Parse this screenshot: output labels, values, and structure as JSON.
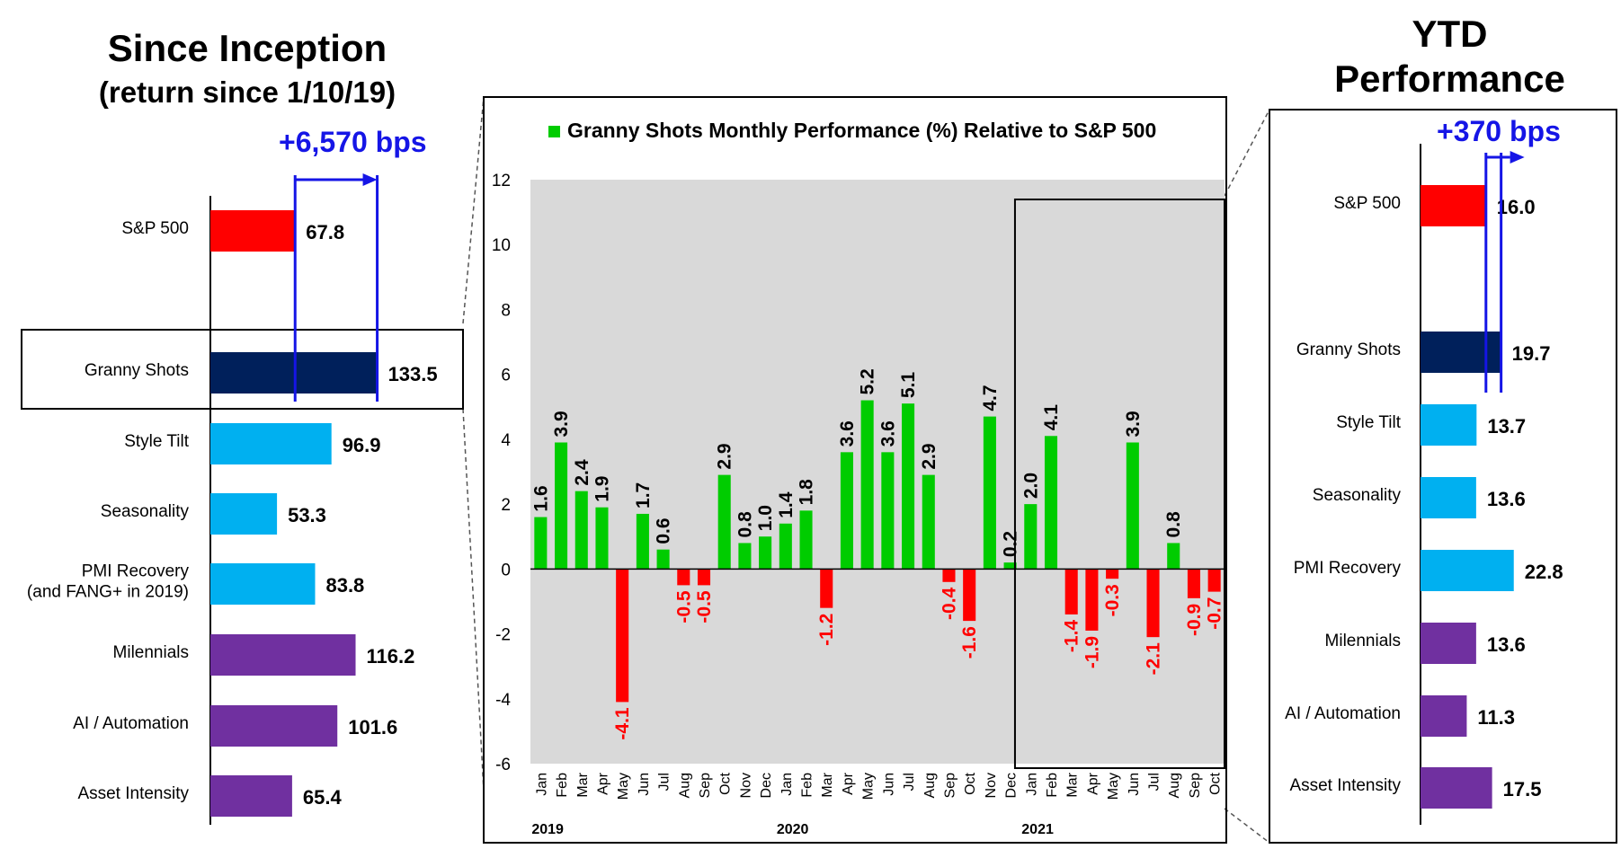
{
  "left_panel": {
    "title": "Since Inception",
    "subtitle": "(return since 1/10/19)",
    "bps_label": "+6,570 bps"
  },
  "right_panel": {
    "title_line1": "YTD",
    "title_line2": "Performance",
    "bps_label": "+370 bps"
  },
  "colors": {
    "sp500": "#ff0000",
    "granny": "#00205b",
    "light_blue": "#00b0f0",
    "purple": "#7030a0",
    "green": "#00cc00",
    "neg_red": "#ff0000",
    "bps_blue": "#1515e6",
    "plot_bg": "#d9d9d9"
  },
  "chart_data": [
    {
      "type": "bar",
      "orientation": "horizontal",
      "title": "Since Inception",
      "categories": [
        "S&P 500",
        "Granny Shots",
        "Style Tilt",
        "Seasonality",
        "PMI Recovery\n(and FANG+ in 2019)",
        "Milennials",
        "AI / Automation",
        "Asset Intensity"
      ],
      "values": [
        67.8,
        133.5,
        96.9,
        53.3,
        83.8,
        116.2,
        101.6,
        65.4
      ],
      "labels": [
        "67.8",
        "133.5",
        "96.9",
        "53.3",
        "83.8",
        "116.2",
        "101.6",
        "65.4"
      ],
      "bar_colors": [
        "sp500",
        "granny",
        "light_blue",
        "light_blue",
        "light_blue",
        "purple",
        "purple",
        "purple"
      ],
      "annotation": "+6,570 bps",
      "highlight": "Granny Shots"
    },
    {
      "type": "bar",
      "title": "Granny Shots Monthly Performance (%) Relative to S&P 500",
      "legend": "Granny Shots Monthly Performance (%) Relative to S&P 500",
      "categories": [
        "Jan",
        "Feb",
        "Mar",
        "Apr",
        "May",
        "Jun",
        "Jul",
        "Aug",
        "Sep",
        "Oct",
        "Nov",
        "Dec",
        "Jan",
        "Feb",
        "Mar",
        "Apr",
        "May",
        "Jun",
        "Jul",
        "Aug",
        "Sep",
        "Oct",
        "Nov",
        "Dec",
        "Jan",
        "Feb",
        "Mar",
        "Apr",
        "May",
        "Jun",
        "Jul",
        "Aug",
        "Sep",
        "Oct"
      ],
      "values": [
        1.6,
        3.9,
        2.4,
        1.9,
        -4.1,
        1.7,
        0.6,
        -0.5,
        -0.5,
        2.9,
        0.8,
        1.0,
        1.4,
        1.8,
        -1.2,
        3.6,
        5.2,
        3.6,
        5.1,
        2.9,
        -0.4,
        -1.6,
        4.7,
        0.2,
        2.0,
        4.1,
        -1.4,
        -1.9,
        -0.3,
        3.9,
        -2.1,
        0.8,
        -0.9,
        -0.7
      ],
      "labels": [
        "1.6",
        "3.9",
        "2.4",
        "1.9",
        "-4.1",
        "1.7",
        "0.6",
        "-0.5",
        "-0.5",
        "2.9",
        "0.8",
        "1.0",
        "1.4",
        "1.8",
        "-1.2",
        "3.6",
        "5.2",
        "3.6",
        "5.1",
        "2.9",
        "-0.4",
        "-1.6",
        "4.7",
        "0.2",
        "2.0",
        "4.1",
        "-1.4",
        "-1.9",
        "-0.3",
        "3.9",
        "-2.1",
        "0.8",
        "-0.9",
        "-0.7"
      ],
      "show_label": [
        true,
        true,
        true,
        true,
        true,
        true,
        true,
        true,
        true,
        true,
        true,
        true,
        true,
        true,
        true,
        true,
        true,
        true,
        true,
        true,
        true,
        true,
        true,
        true,
        true,
        true,
        true,
        true,
        true,
        true,
        true,
        true,
        true,
        true
      ],
      "year_labels": [
        {
          "label": "2019",
          "index": 0
        },
        {
          "label": "2020",
          "index": 12
        },
        {
          "label": "2021",
          "index": 24
        }
      ],
      "ylim": [
        -6,
        12
      ],
      "yticks": [
        "-6",
        "-4",
        "-2",
        "0",
        "2",
        "4",
        "6",
        "8",
        "10",
        "12"
      ],
      "ytick_values": [
        -6,
        -4,
        -2,
        0,
        2,
        4,
        6,
        8,
        10,
        12
      ],
      "grid": false,
      "highlight_range": [
        24,
        33
      ]
    },
    {
      "type": "bar",
      "orientation": "horizontal",
      "title": "YTD Performance",
      "categories": [
        "S&P 500",
        "Granny Shots",
        "Style Tilt",
        "Seasonality",
        "PMI Recovery",
        "Milennials",
        "AI / Automation",
        "Asset Intensity"
      ],
      "values": [
        16.0,
        19.7,
        13.7,
        13.6,
        22.8,
        13.6,
        11.3,
        17.5
      ],
      "labels": [
        "16.0",
        "19.7",
        "13.7",
        "13.6",
        "22.8",
        "13.6",
        "11.3",
        "17.5"
      ],
      "bar_colors": [
        "sp500",
        "granny",
        "light_blue",
        "light_blue",
        "light_blue",
        "purple",
        "purple",
        "purple"
      ],
      "annotation": "+370 bps"
    }
  ]
}
